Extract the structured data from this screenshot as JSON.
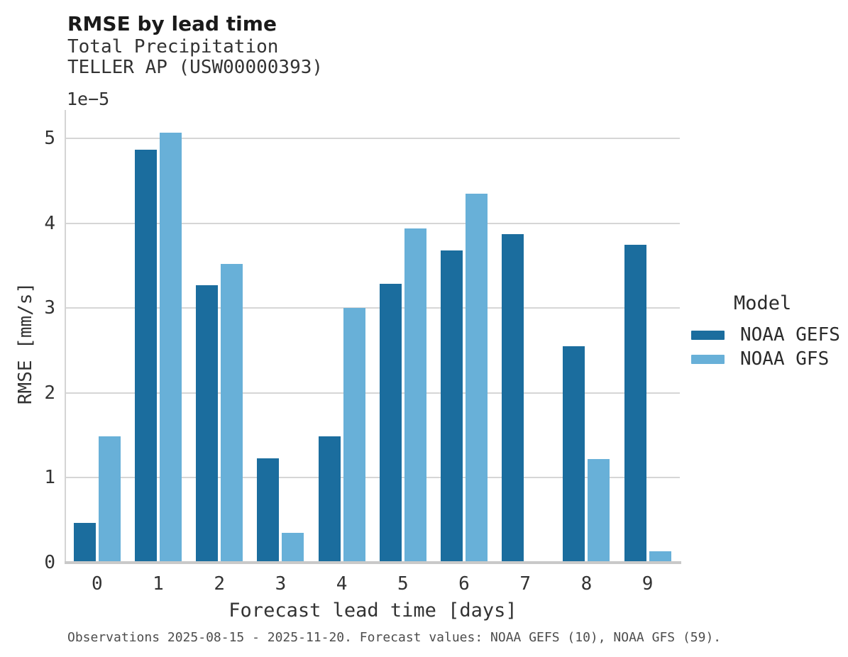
{
  "header": {
    "title": "RMSE by lead time",
    "subtitle1": "Total Precipitation",
    "subtitle2": "TELLER AP (USW00000393)"
  },
  "chart_data": {
    "type": "bar",
    "title": "RMSE by lead time",
    "subtitle1": "Total Precipitation",
    "subtitle2": "TELLER AP (USW00000393)",
    "categories": [
      "0",
      "1",
      "2",
      "3",
      "4",
      "5",
      "6",
      "7",
      "8",
      "9"
    ],
    "series": [
      {
        "name": "NOAA GEFS",
        "color": "#1b6d9e",
        "values": [
          0.47,
          4.87,
          3.27,
          1.23,
          1.49,
          3.29,
          3.68,
          3.87,
          2.55,
          3.75
        ]
      },
      {
        "name": "NOAA GFS",
        "color": "#68b0d8",
        "values": [
          1.49,
          5.07,
          3.52,
          0.35,
          3.0,
          3.94,
          4.35,
          null,
          1.22,
          0.13
        ]
      }
    ],
    "value_scale": "1e-5",
    "y_offset_text": "1e−5",
    "xlabel": "Forecast lead time [days]",
    "ylabel": "RMSE [mm/s]",
    "ylim": [
      0,
      5.33
    ],
    "yticks": [
      0,
      1,
      2,
      3,
      4,
      5
    ],
    "grid": "horizontal",
    "legend_title": "Model",
    "legend_position": "right"
  },
  "legend": {
    "title": "Model",
    "items": [
      {
        "label": "NOAA GEFS",
        "color": "#1b6d9e"
      },
      {
        "label": "NOAA GFS",
        "color": "#68b0d8"
      }
    ]
  },
  "footer": {
    "note": "Observations 2025-08-15 - 2025-11-20. Forecast values: NOAA GEFS (10), NOAA GFS (59)."
  },
  "colors": {
    "noaa_gefs": "#1b6d9e",
    "noaa_gfs": "#68b0d8",
    "gridline": "#d6d6d6",
    "axis_line": "#c9c9c9",
    "background": "#ffffff"
  }
}
